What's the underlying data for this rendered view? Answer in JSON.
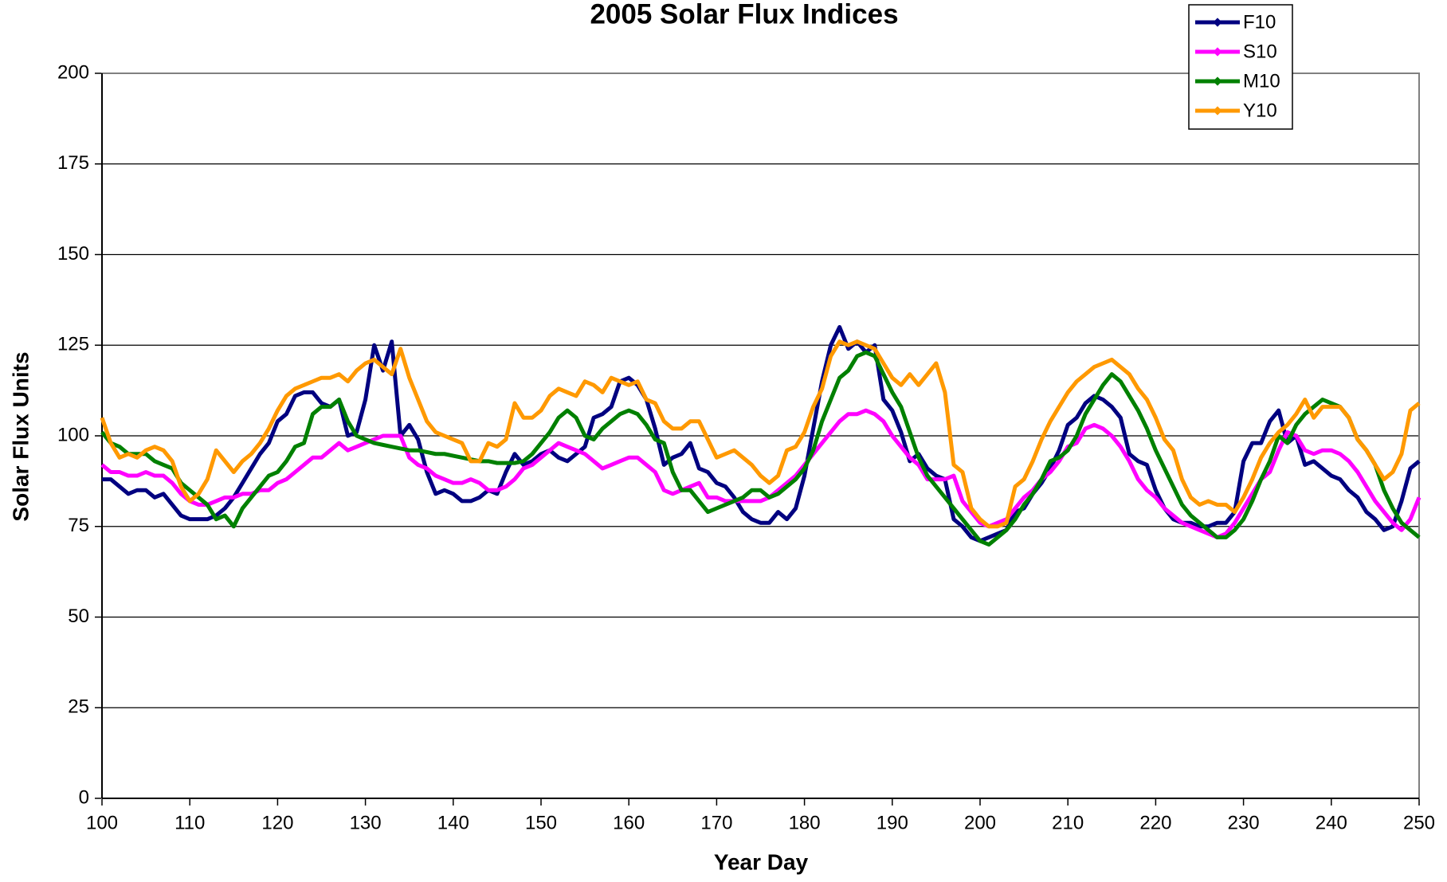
{
  "chart_data": {
    "type": "line",
    "title": "2005 Solar Flux Indices",
    "x_label": "Year Day",
    "y_label": "Solar Flux Units",
    "x": [
      100,
      101,
      102,
      103,
      104,
      105,
      106,
      107,
      108,
      109,
      110,
      111,
      112,
      113,
      114,
      115,
      116,
      117,
      118,
      119,
      120,
      121,
      122,
      123,
      124,
      125,
      126,
      127,
      128,
      129,
      130,
      131,
      132,
      133,
      134,
      135,
      136,
      137,
      138,
      139,
      140,
      141,
      142,
      143,
      144,
      145,
      146,
      147,
      148,
      149,
      150,
      151,
      152,
      153,
      154,
      155,
      156,
      157,
      158,
      159,
      160,
      161,
      162,
      163,
      164,
      165,
      166,
      167,
      168,
      169,
      170,
      171,
      172,
      173,
      174,
      175,
      176,
      177,
      178,
      179,
      180,
      181,
      182,
      183,
      184,
      185,
      186,
      187,
      188,
      189,
      190,
      191,
      192,
      193,
      194,
      195,
      196,
      197,
      198,
      199,
      200,
      201,
      202,
      203,
      204,
      205,
      206,
      207,
      208,
      209,
      210,
      211,
      212,
      213,
      214,
      215,
      216,
      217,
      218,
      219,
      220,
      221,
      222,
      223,
      224,
      225,
      226,
      227,
      228,
      229,
      230,
      231,
      232,
      233,
      234,
      235,
      236,
      237,
      238,
      239,
      240,
      241,
      242,
      243,
      244,
      245,
      246,
      247,
      248,
      249,
      250
    ],
    "series": [
      {
        "name": "F10",
        "color": "#000080",
        "values": [
          88,
          88,
          86,
          84,
          85,
          85,
          83,
          84,
          81,
          78,
          77,
          77,
          77,
          78,
          80,
          83,
          87,
          91,
          95,
          98,
          104,
          106,
          111,
          112,
          112,
          109,
          108,
          110,
          100,
          101,
          110,
          125,
          118,
          126,
          100,
          103,
          99,
          90,
          84,
          85,
          84,
          82,
          82,
          83,
          85,
          84,
          90,
          95,
          92,
          93,
          95,
          96,
          94,
          93,
          95,
          97,
          105,
          106,
          108,
          115,
          116,
          114,
          110,
          102,
          92,
          94,
          95,
          98,
          91,
          90,
          87,
          86,
          83,
          79,
          77,
          76,
          76,
          79,
          77,
          80,
          89,
          102,
          115,
          125,
          130,
          124,
          126,
          123,
          125,
          110,
          107,
          101,
          93,
          95,
          91,
          89,
          88,
          77,
          75,
          72,
          71,
          72,
          73,
          74,
          79,
          80,
          84,
          87,
          91,
          96,
          103,
          105,
          109,
          111,
          110,
          108,
          105,
          95,
          93,
          92,
          85,
          80,
          77,
          76,
          76,
          75,
          75,
          76,
          76,
          79,
          93,
          98,
          98,
          104,
          107,
          98,
          100,
          92,
          93,
          91,
          89,
          88,
          85,
          83,
          79,
          77,
          74,
          75,
          82,
          91,
          93
        ]
      },
      {
        "name": "S10",
        "color": "#ff00ff",
        "values": [
          92,
          90,
          90,
          89,
          89,
          90,
          89,
          89,
          87,
          84,
          82,
          81,
          81,
          82,
          83,
          83,
          84,
          84,
          85,
          85,
          87,
          88,
          90,
          92,
          94,
          94,
          96,
          98,
          96,
          97,
          98,
          99,
          100,
          100,
          100,
          94,
          92,
          91,
          89,
          88,
          87,
          87,
          88,
          87,
          85,
          85,
          86,
          88,
          91,
          92,
          94,
          96,
          98,
          97,
          96,
          95,
          93,
          91,
          92,
          93,
          94,
          94,
          92,
          90,
          85,
          84,
          85,
          86,
          87,
          83,
          83,
          82,
          82,
          82,
          82,
          82,
          83,
          85,
          87,
          89,
          92,
          95,
          98,
          101,
          104,
          106,
          106,
          107,
          106,
          104,
          100,
          97,
          94,
          92,
          88,
          88,
          88,
          89,
          82,
          79,
          76,
          75,
          76,
          77,
          80,
          83,
          85,
          88,
          90,
          93,
          97,
          98,
          102,
          103,
          102,
          100,
          97,
          93,
          88,
          85,
          83,
          80,
          78,
          76,
          75,
          74,
          73,
          72,
          73,
          76,
          80,
          84,
          88,
          90,
          96,
          101,
          100,
          96,
          95,
          96,
          96,
          95,
          93,
          90,
          86,
          82,
          79,
          76,
          74,
          77,
          83
        ]
      },
      {
        "name": "M10",
        "color": "#008000",
        "values": [
          101,
          98,
          97,
          95,
          95,
          95,
          93,
          92,
          91,
          87,
          85,
          83,
          81,
          77,
          78,
          75,
          80,
          83,
          86,
          89,
          90,
          93,
          97,
          98,
          106,
          108,
          108,
          110,
          104,
          100,
          99,
          98,
          97.5,
          97,
          96.5,
          96,
          96,
          95.5,
          95,
          95,
          94.5,
          94,
          93.5,
          93,
          93,
          92.5,
          92.5,
          92.5,
          93,
          95,
          98,
          101,
          105,
          107,
          105,
          100,
          99,
          102,
          104,
          106,
          107,
          106,
          103,
          99,
          98,
          90,
          85,
          85,
          82,
          79,
          80,
          81,
          82,
          83,
          85,
          85,
          83,
          84,
          86,
          88,
          91,
          96,
          104,
          110,
          116,
          118,
          122,
          123,
          122,
          117,
          112,
          108,
          101,
          94,
          89,
          86,
          83,
          80,
          77,
          74,
          71,
          70,
          72,
          74,
          77,
          81,
          84,
          88,
          93,
          94,
          96,
          100,
          106,
          110,
          114,
          117,
          115,
          111,
          107,
          102,
          96,
          91,
          86,
          81,
          78,
          76,
          74,
          72,
          72,
          74,
          77,
          82,
          88,
          93,
          100,
          98,
          103,
          106,
          108,
          110,
          109,
          108,
          105,
          99,
          96,
          92,
          85,
          80,
          76,
          74,
          72
        ]
      },
      {
        "name": "Y10",
        "color": "#ff9900",
        "values": [
          105,
          98,
          94,
          95,
          94,
          96,
          97,
          96,
          93,
          86,
          82,
          84,
          88,
          96,
          93,
          90,
          93,
          95,
          98,
          102,
          107,
          111,
          113,
          114,
          115,
          116,
          116,
          117,
          115,
          118,
          120,
          121,
          119,
          117,
          124,
          116,
          110,
          104,
          101,
          100,
          99,
          98,
          93,
          93,
          98,
          97,
          99,
          109,
          105,
          105,
          107,
          111,
          113,
          112,
          111,
          115,
          114,
          112,
          116,
          115,
          114,
          115,
          110,
          109,
          104,
          102,
          102,
          104,
          104,
          99,
          94,
          95,
          96,
          94,
          92,
          89,
          87,
          89,
          96,
          97,
          101,
          108,
          113,
          122,
          126,
          125,
          126,
          125,
          124,
          120,
          116,
          114,
          117,
          114,
          117,
          120,
          112,
          92,
          90,
          80,
          77,
          75,
          75,
          76,
          86,
          88,
          93,
          99,
          104,
          108,
          112,
          115,
          117,
          119,
          120,
          121,
          119,
          117,
          113,
          110,
          105,
          99,
          96,
          88,
          83,
          81,
          82,
          81,
          81,
          79,
          83,
          88,
          94,
          98,
          101,
          103,
          106,
          110,
          105,
          108,
          108,
          108,
          105,
          99,
          96,
          92,
          88,
          90,
          95,
          107,
          109
        ]
      }
    ],
    "xlim": [
      100,
      250
    ],
    "xticks": [
      100,
      110,
      120,
      130,
      140,
      150,
      160,
      170,
      180,
      190,
      200,
      210,
      220,
      230,
      240,
      250
    ],
    "ylim": [
      0,
      200
    ],
    "yticks": [
      0,
      25,
      50,
      75,
      100,
      125,
      150,
      175,
      200
    ],
    "grid": true,
    "legend": "top-right"
  }
}
